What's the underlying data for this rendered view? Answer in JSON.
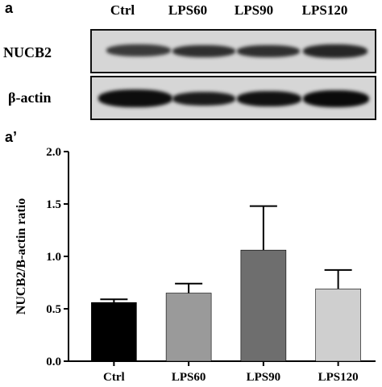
{
  "panels": {
    "blot_label": "a",
    "chart_label": "a’"
  },
  "blot": {
    "lanes": [
      "Ctrl",
      "LPS60",
      "LPS90",
      "LPS120"
    ],
    "rows": [
      {
        "label": "NUCB2"
      },
      {
        "label": "β-actin"
      }
    ]
  },
  "chart_data": {
    "type": "bar",
    "categories": [
      "Ctrl",
      "LPS60",
      "LPS90",
      "LPS120"
    ],
    "values": [
      0.56,
      0.65,
      1.06,
      0.69
    ],
    "errors": [
      0.03,
      0.09,
      0.42,
      0.18
    ],
    "colors": [
      "#000000",
      "#9a9a9a",
      "#6e6e6e",
      "#cfcfcf"
    ],
    "ylabel": "NUCB2/Β-actin ratio",
    "ylim": [
      0,
      2.0
    ],
    "yticks": [
      "0.0",
      "0.5",
      "1.0",
      "1.5",
      "2.0"
    ],
    "grid": false
  }
}
